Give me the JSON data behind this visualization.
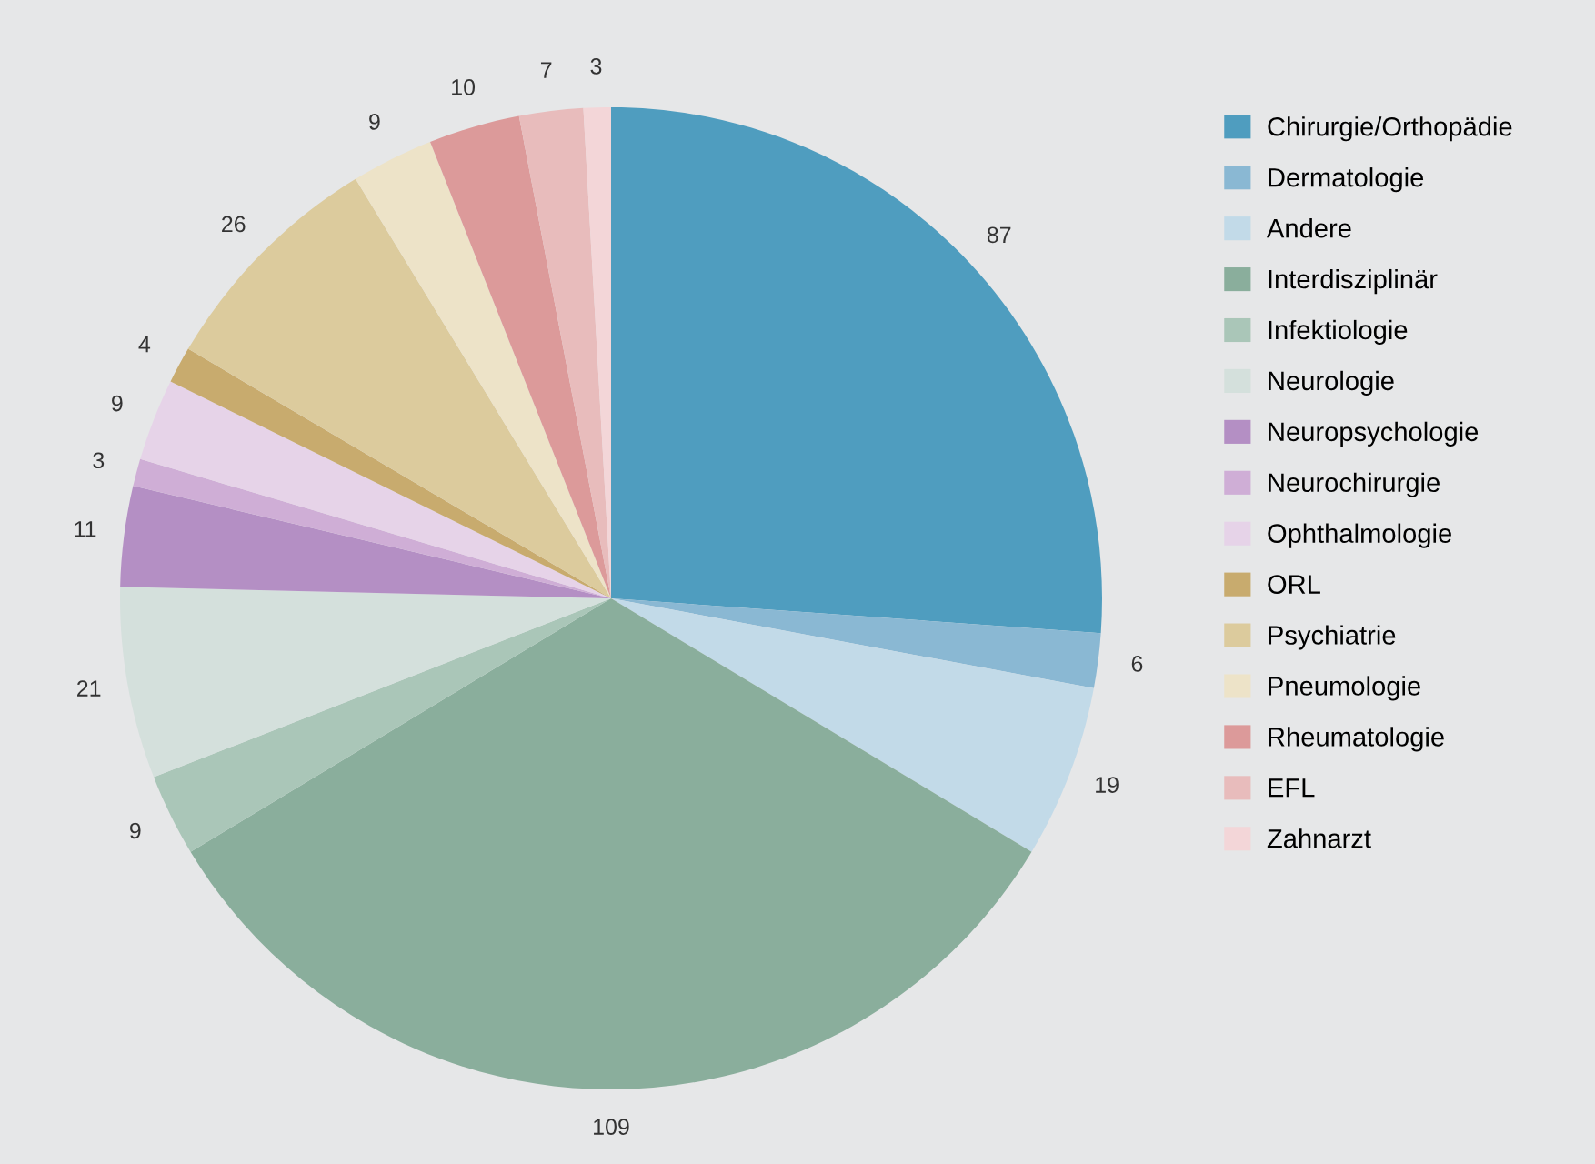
{
  "chart_data": {
    "type": "pie",
    "categories": [
      "Chirurgie/Orthopädie",
      "Dermatologie",
      "Andere",
      "Interdisziplinär",
      "Infektiologie",
      "Neurologie",
      "Neuropsychologie",
      "Neurochirurgie",
      "Ophthalmologie",
      "ORL",
      "Psychiatrie",
      "Pneumologie",
      "Rheumatologie",
      "EFL",
      "Zahnarzt"
    ],
    "values": [
      87,
      6,
      19,
      109,
      9,
      21,
      11,
      3,
      9,
      4,
      26,
      9,
      10,
      7,
      3
    ],
    "colors": [
      "#4f9dbf",
      "#8ab8d3",
      "#c2dae8",
      "#8aae9c",
      "#aac6b8",
      "#d4e0dc",
      "#b48fc4",
      "#cfaed6",
      "#e6d3e8",
      "#c8ab6e",
      "#dccb9d",
      "#ede3c8",
      "#dc9a9a",
      "#e8bcbc",
      "#f3d6d8"
    ],
    "data_labels": true,
    "legend": "right"
  }
}
